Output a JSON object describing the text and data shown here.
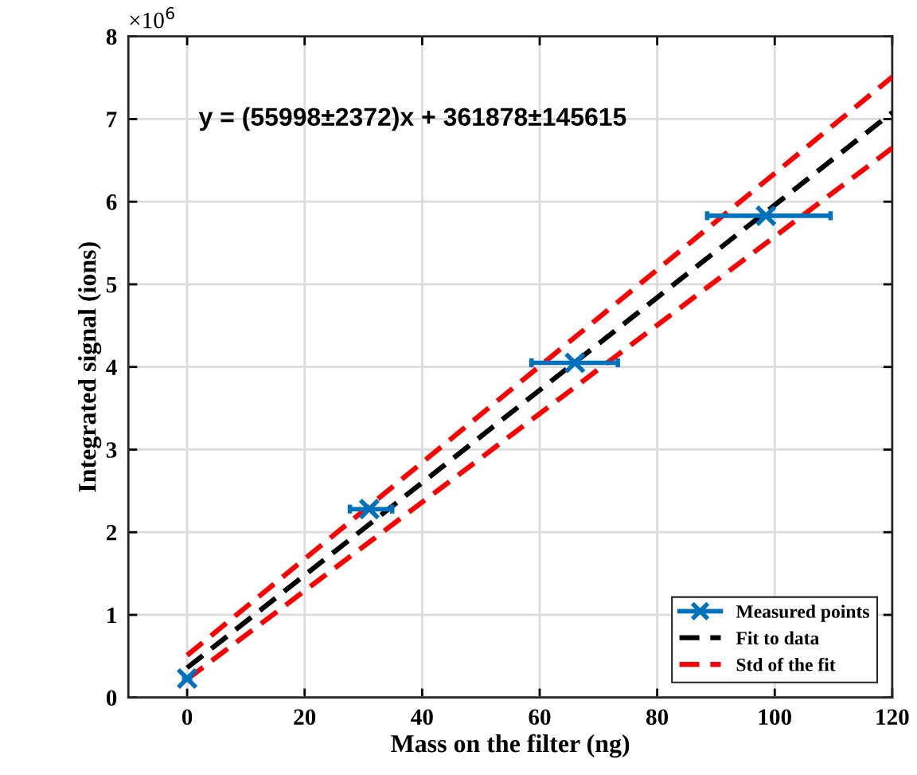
{
  "chart_data": {
    "type": "scatter",
    "xlabel": "Mass on the filter (ng)",
    "ylabel": "Integrated signal (ions)",
    "annotations": [
      "y = (55998±2372)x + 361878±145615",
      "×10$^{6}$"
    ],
    "xlim": [
      -10,
      120
    ],
    "xticks": [
      0,
      20,
      40,
      60,
      80,
      100,
      120
    ],
    "ylim": [
      0,
      8
    ],
    "yticks": [
      0,
      1,
      2,
      3,
      4,
      5,
      6,
      7,
      8
    ],
    "grid": true,
    "legend": "bottom right",
    "series": [
      {
        "name": "Measured points",
        "color": "#0072bd",
        "marker": "cross",
        "x": [
          0,
          31,
          66,
          98.5
        ],
        "values": [
          0.23,
          2.28,
          4.05,
          5.83
        ],
        "xerrors": [
          0.5,
          [
            27.7,
            34.9
          ],
          [
            58.6,
            73.3
          ],
          [
            88.5,
            109.5
          ]
        ]
      },
      {
        "name": "Fit to data",
        "type": "line",
        "color": "#000000",
        "line_style": "dashed",
        "x": [
          0,
          120
        ],
        "values": [
          0.36,
          7.08
        ]
      },
      {
        "name": "Std of the fit",
        "type": "line",
        "color": "#ff0000",
        "line_style": "dashed",
        "x": [
          0,
          120
        ],
        "values": [
          0.51,
          7.51
        ]
      },
      {
        "type": "line",
        "color": "#ff0000",
        "line_style": "dashed",
        "x": [
          0,
          120
        ],
        "values": [
          0.22,
          6.65
        ]
      }
    ]
  }
}
